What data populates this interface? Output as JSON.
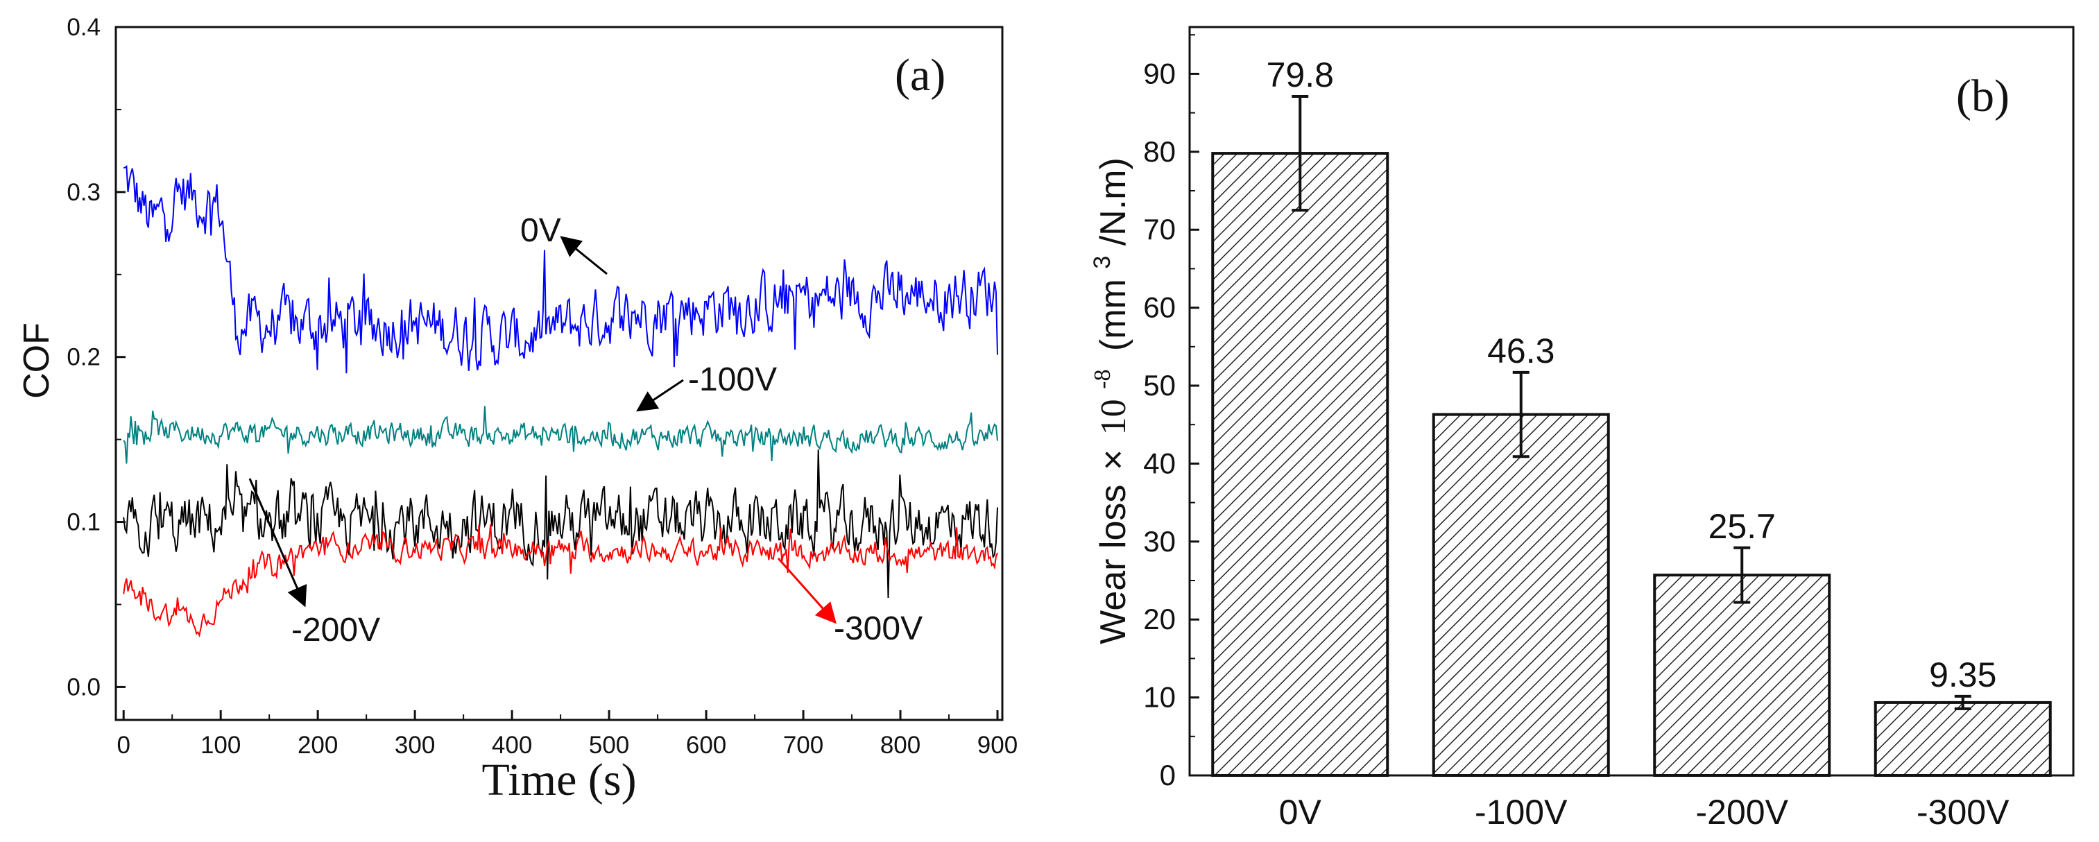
{
  "chart_data": [
    {
      "type": "line",
      "panel_label": "(a)",
      "xlabel": "Time (s)",
      "ylabel": "COF",
      "xlim": [
        -8,
        905
      ],
      "ylim": [
        -0.02,
        0.4
      ],
      "xticks": [
        0,
        100,
        200,
        300,
        400,
        500,
        600,
        700,
        800,
        900
      ],
      "yticks": [
        0.0,
        0.1,
        0.2,
        0.3,
        0.4
      ],
      "ytick_labels": [
        "0.0",
        "0.1",
        "0.2",
        "0.3",
        "0.4"
      ],
      "grid": false,
      "series": [
        {
          "name": "0V",
          "color": "#0000ff",
          "mean": 0.225,
          "noise": 0.03,
          "profile": [
            [
              0,
              0.31
            ],
            [
              30,
              0.28
            ],
            [
              60,
              0.3
            ],
            [
              100,
              0.29
            ],
            [
              115,
              0.22
            ],
            [
              300,
              0.22
            ],
            [
              400,
              0.21
            ],
            [
              500,
              0.225
            ],
            [
              700,
              0.235
            ],
            [
              900,
              0.24
            ]
          ]
        },
        {
          "name": "-100V",
          "color": "#008080",
          "mean": 0.15,
          "noise": 0.012,
          "profile": [
            [
              0,
              0.155
            ],
            [
              900,
              0.15
            ]
          ]
        },
        {
          "name": "-200V",
          "color": "#000000",
          "mean": 0.1,
          "noise": 0.03,
          "profile": [
            [
              0,
              0.095
            ],
            [
              100,
              0.1
            ],
            [
              900,
              0.1
            ]
          ]
        },
        {
          "name": "-300V",
          "color": "#ff0000",
          "mean": 0.08,
          "noise": 0.012,
          "profile": [
            [
              0,
              0.06
            ],
            [
              40,
              0.045
            ],
            [
              80,
              0.04
            ],
            [
              130,
              0.07
            ],
            [
              200,
              0.085
            ],
            [
              900,
              0.08
            ]
          ]
        }
      ]
    },
    {
      "type": "bar",
      "panel_label": "(b)",
      "ylabel_main": "Wear loss",
      "ylabel_times": "×",
      "ylabel_base": "10",
      "ylabel_exp": "-8",
      "ylabel_unit_open": "(mm",
      "ylabel_unit_exp": "3",
      "ylabel_unit_close": "/N.m)",
      "categories": [
        "0V",
        "-100V",
        "-200V",
        "-300V"
      ],
      "values": [
        79.8,
        46.3,
        25.7,
        9.35
      ],
      "value_labels": [
        "79.8",
        "46.3",
        "25.7",
        "9.35"
      ],
      "errors": [
        7.3,
        5.4,
        3.5,
        0.8
      ],
      "ylim": [
        0,
        96
      ],
      "yticks": [
        0,
        10,
        20,
        30,
        40,
        50,
        60,
        70,
        80,
        90
      ],
      "fill": "hatched",
      "grid": false
    }
  ]
}
